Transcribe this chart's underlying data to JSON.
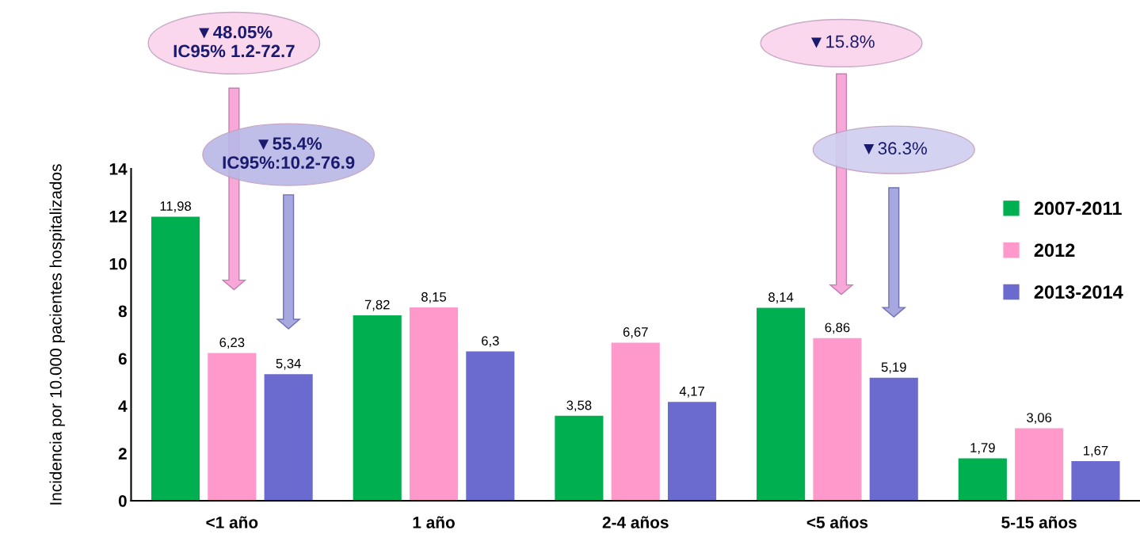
{
  "chart_data": {
    "type": "bar",
    "ylabel": "Incidencia por 10.000 pacientes hospitalizados",
    "categories": [
      "<1 año",
      "1 año",
      "2-4 años",
      "<5 años",
      "5-15 años"
    ],
    "series": [
      {
        "name": "2007-2011",
        "color": "#00b050",
        "values": [
          11.98,
          7.82,
          3.58,
          8.14,
          1.79
        ],
        "value_labels": [
          "11,98",
          "7,82",
          "3,58",
          "8,14",
          "1,79"
        ]
      },
      {
        "name": "2012",
        "color": "#ff99cc",
        "values": [
          6.23,
          8.15,
          6.67,
          6.86,
          3.06
        ],
        "value_labels": [
          "6,23",
          "8,15",
          "6,67",
          "6,86",
          "3,06"
        ]
      },
      {
        "name": "2013-2014",
        "color": "#6b6bcf",
        "values": [
          5.34,
          6.3,
          4.17,
          5.19,
          1.67
        ],
        "value_labels": [
          "5,34",
          "6,3",
          "4,17",
          "5,19",
          "1,67"
        ]
      }
    ],
    "ylim": [
      0,
      14
    ],
    "yticks": [
      0,
      2,
      4,
      6,
      8,
      10,
      12,
      14
    ],
    "grid": false,
    "legend": "right",
    "annotations": [
      "▼48.05%\nIC95% 1.2-72.7",
      "▼55.4%\nIC95%:10.2-76.9",
      "▼15.8%",
      "▼36.3%"
    ]
  }
}
